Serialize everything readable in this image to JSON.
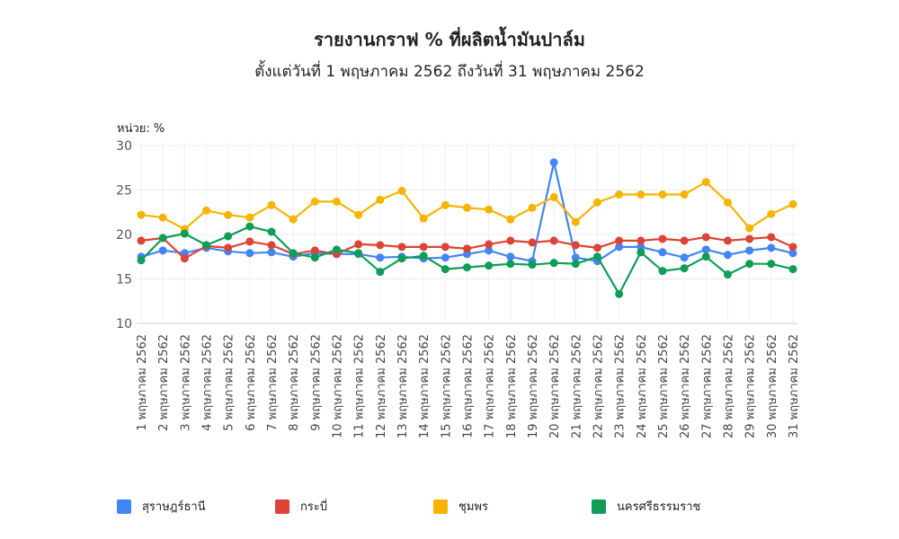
{
  "chart_data": {
    "type": "line",
    "title": "รายงานกราฟ % ที่ผลิตน้ำมันปาล์ม",
    "subtitle": "ตั้งแต่วันที่ 1 พฤษภาคม 2562 ถึงวันที่ 31 พฤษภาคม 2562",
    "ylabel": "หน่วย: %",
    "ylim": [
      10,
      30
    ],
    "yticks": [
      "10",
      "15",
      "20",
      "25",
      "30"
    ],
    "grid": true,
    "legend_position": "bottom",
    "categories": [
      "1 พฤษภาคม 2562",
      "2 พฤษภาคม 2562",
      "3 พฤษภาคม 2562",
      "4 พฤษภาคม 2562",
      "5 พฤษภาคม 2562",
      "6 พฤษภาคม 2562",
      "7 พฤษภาคม 2562",
      "8 พฤษภาคม 2562",
      "9 พฤษภาคม 2562",
      "10 พฤษภาคม 2562",
      "11 พฤษภาคม 2562",
      "12 พฤษภาคม 2562",
      "13 พฤษภาคม 2562",
      "14 พฤษภาคม 2562",
      "15 พฤษภาคม 2562",
      "16 พฤษภาคม 2562",
      "17 พฤษภาคม 2562",
      "18 พฤษภาคม 2562",
      "19 พฤษภาคม 2562",
      "20 พฤษภาคม 2562",
      "21 พฤษภาคม 2562",
      "22 พฤษภาคม 2562",
      "23 พฤษภาคม 2562",
      "24 พฤษภาคม 2562",
      "25 พฤษภาคม 2562",
      "26 พฤษภาคม 2562",
      "27 พฤษภาคม 2562",
      "28 พฤษภาคม 2562",
      "29 พฤษภาคม 2562",
      "30 พฤษภาคม 2562",
      "31 พฤษภาคม 2562"
    ],
    "series": [
      {
        "name": "สุราษฎร์ธานี",
        "color": "#4285f4",
        "values": [
          17.5,
          18.2,
          17.9,
          18.5,
          18.1,
          17.9,
          18.0,
          17.5,
          17.9,
          17.8,
          17.8,
          17.4,
          17.5,
          17.3,
          17.4,
          17.8,
          18.2,
          17.5,
          17.0,
          28.1,
          17.4,
          17.0,
          18.6,
          18.6,
          18.0,
          17.4,
          18.3,
          17.7,
          18.2,
          18.5,
          17.9
        ]
      },
      {
        "name": "กระบี่",
        "color": "#db4437",
        "values": [
          19.3,
          19.6,
          17.3,
          18.7,
          18.5,
          19.2,
          18.8,
          17.8,
          18.2,
          17.8,
          18.9,
          18.8,
          18.6,
          18.6,
          18.6,
          18.4,
          18.9,
          19.3,
          19.1,
          19.3,
          18.8,
          18.5,
          19.3,
          19.3,
          19.5,
          19.3,
          19.7,
          19.3,
          19.5,
          19.7,
          18.6
        ]
      },
      {
        "name": "ชุมพร",
        "color": "#f4b400",
        "values": [
          22.2,
          21.9,
          20.6,
          22.7,
          22.2,
          21.9,
          23.3,
          21.7,
          23.7,
          23.7,
          22.2,
          23.9,
          24.9,
          21.8,
          23.3,
          23.0,
          22.8,
          21.7,
          23.0,
          24.2,
          21.4,
          23.6,
          24.5,
          24.5,
          24.5,
          24.5,
          25.9,
          23.6,
          20.7,
          22.3,
          23.4
        ]
      },
      {
        "name": "นครศรีธรรมราช",
        "color": "#0f9d58",
        "values": [
          17.1,
          19.6,
          20.1,
          18.8,
          19.8,
          20.9,
          20.3,
          17.9,
          17.4,
          18.3,
          17.9,
          15.8,
          17.3,
          17.6,
          16.1,
          16.3,
          16.5,
          16.7,
          16.6,
          16.8,
          16.7,
          17.5,
          13.3,
          18.0,
          15.9,
          16.2,
          17.5,
          15.5,
          16.7,
          16.7,
          16.1
        ]
      }
    ]
  }
}
